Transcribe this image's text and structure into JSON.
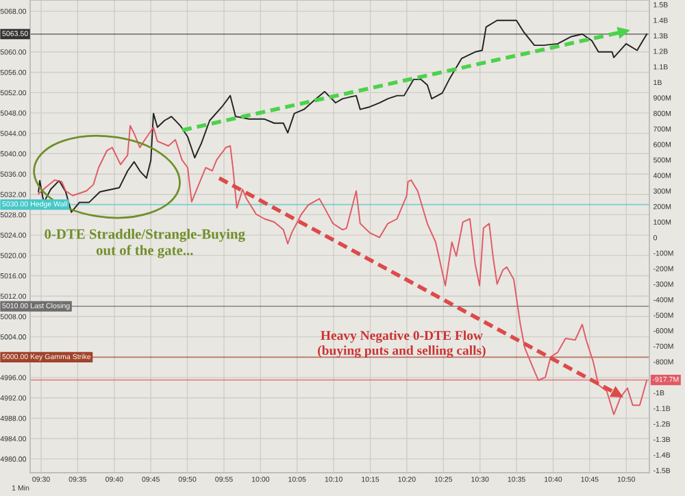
{
  "chart_data": {
    "type": "line",
    "xlim": [
      9.475,
      10.886
    ],
    "xticks": [
      {
        "value": 9.5,
        "label": "09:30"
      },
      {
        "value": 9.5833,
        "label": "09:35"
      },
      {
        "value": 9.6667,
        "label": "09:40"
      },
      {
        "value": 9.75,
        "label": "09:45"
      },
      {
        "value": 9.8333,
        "label": "09:50"
      },
      {
        "value": 9.9167,
        "label": "09:55"
      },
      {
        "value": 10,
        "label": "10:00"
      },
      {
        "value": 10.0833,
        "label": "10:05"
      },
      {
        "value": 10.1667,
        "label": "10:10"
      },
      {
        "value": 10.25,
        "label": "10:15"
      },
      {
        "value": 10.3333,
        "label": "10:20"
      },
      {
        "value": 10.4167,
        "label": "10:25"
      },
      {
        "value": 10.5,
        "label": "10:30"
      },
      {
        "value": 10.5833,
        "label": "10:35"
      },
      {
        "value": 10.6667,
        "label": "10:40"
      },
      {
        "value": 10.75,
        "label": "10:45"
      },
      {
        "value": 10.8333,
        "label": "10:50"
      }
    ],
    "ylim": [
      4977.3,
      5070.2
    ],
    "yticks": [
      {
        "value": 4980,
        "label": "4980.00"
      },
      {
        "value": 4984,
        "label": "4984.00"
      },
      {
        "value": 4988,
        "label": "4988.00"
      },
      {
        "value": 4992,
        "label": "4992.00"
      },
      {
        "value": 4996,
        "label": "4996.00"
      },
      {
        "value": 5004,
        "label": "5004.00"
      },
      {
        "value": 5008,
        "label": "5008.00"
      },
      {
        "value": 5012,
        "label": "5012.00"
      },
      {
        "value": 5016,
        "label": "5016.00"
      },
      {
        "value": 5020,
        "label": "5020.00"
      },
      {
        "value": 5024,
        "label": "5024.00"
      },
      {
        "value": 5028,
        "label": "5028.00"
      },
      {
        "value": 5032,
        "label": "5032.00"
      },
      {
        "value": 5036,
        "label": "5036.00"
      },
      {
        "value": 5040,
        "label": "5040.00"
      },
      {
        "value": 5044,
        "label": "5044.00"
      },
      {
        "value": 5048,
        "label": "5048.00"
      },
      {
        "value": 5052,
        "label": "5052.00"
      },
      {
        "value": 5056,
        "label": "5056.00"
      },
      {
        "value": 5060,
        "label": "5060.00"
      },
      {
        "value": 5068,
        "label": "5068.00"
      }
    ],
    "y2lim": [
      -1515000000.0,
      1530000000.0
    ],
    "y2ticks": [
      {
        "value": -1500000000.0,
        "label": "-1.5B"
      },
      {
        "value": -1400000000.0,
        "label": "-1.4B"
      },
      {
        "value": -1300000000.0,
        "label": "-1.3B"
      },
      {
        "value": -1200000000.0,
        "label": "-1.2B"
      },
      {
        "value": -1100000000.0,
        "label": "-1.1B"
      },
      {
        "value": -1000000000.0,
        "label": "-1B"
      },
      {
        "value": -800000000.0,
        "label": "-800M"
      },
      {
        "value": -700000000.0,
        "label": "-700M"
      },
      {
        "value": -600000000.0,
        "label": "-600M"
      },
      {
        "value": -500000000.0,
        "label": "-500M"
      },
      {
        "value": -400000000.0,
        "label": "-400M"
      },
      {
        "value": -300000000.0,
        "label": "-300M"
      },
      {
        "value": -200000000.0,
        "label": "-200M"
      },
      {
        "value": -100000000.0,
        "label": "-100M"
      },
      {
        "value": 0,
        "label": "0"
      },
      {
        "value": 100000000.0,
        "label": "100M"
      },
      {
        "value": 200000000.0,
        "label": "200M"
      },
      {
        "value": 300000000.0,
        "label": "300M"
      },
      {
        "value": 400000000.0,
        "label": "400M"
      },
      {
        "value": 500000000.0,
        "label": "500M"
      },
      {
        "value": 600000000.0,
        "label": "600M"
      },
      {
        "value": 700000000.0,
        "label": "700M"
      },
      {
        "value": 800000000.0,
        "label": "800M"
      },
      {
        "value": 900000000.0,
        "label": "900M"
      },
      {
        "value": 1000000000.0,
        "label": "1B"
      },
      {
        "value": 1100000000.0,
        "label": "1.1B"
      },
      {
        "value": 1200000000.0,
        "label": "1.2B"
      },
      {
        "value": 1300000000.0,
        "label": "1.3B"
      },
      {
        "value": 1400000000.0,
        "label": "1.4B"
      },
      {
        "value": 1500000000.0,
        "label": "1.5B"
      }
    ],
    "grid": true,
    "series": [
      {
        "color": "#e05a64",
        "axis": "y2",
        "x": [
          9.494,
          9.509,
          9.531,
          9.547,
          9.556,
          9.572,
          9.603,
          9.619,
          9.631,
          9.65,
          9.662,
          9.681,
          9.697,
          9.703,
          9.712,
          9.725,
          9.734,
          9.756,
          9.765,
          9.79,
          9.806,
          9.821,
          9.834,
          9.843,
          9.859,
          9.875,
          9.89,
          9.9,
          9.921,
          9.931,
          9.937,
          9.946,
          9.959,
          9.968,
          9.99,
          10.009,
          10.031,
          10.052,
          10.062,
          10.071,
          10.093,
          10.109,
          10.134,
          10.146,
          10.165,
          10.187,
          10.196,
          10.218,
          10.227,
          10.249,
          10.271,
          10.29,
          10.311,
          10.333,
          10.336,
          10.343,
          10.358,
          10.38,
          10.399,
          10.421,
          10.436,
          10.446,
          10.461,
          10.477,
          10.489,
          10.499,
          10.508,
          10.521,
          10.53,
          10.539,
          10.552,
          10.561,
          10.577,
          10.592,
          10.602,
          10.624,
          10.633,
          10.649,
          10.661,
          10.677,
          10.695,
          10.717,
          10.733,
          10.742,
          10.758,
          10.77,
          10.789,
          10.805,
          10.82,
          10.836,
          10.848,
          10.864,
          10.88
        ],
        "values": [
          280000000.0,
          320000000.0,
          370000000.0,
          360000000.0,
          300000000.0,
          270000000.0,
          300000000.0,
          340000000.0,
          450000000.0,
          560000000.0,
          580000000.0,
          470000000.0,
          530000000.0,
          720000000.0,
          670000000.0,
          580000000.0,
          620000000.0,
          710000000.0,
          620000000.0,
          590000000.0,
          630000000.0,
          500000000.0,
          450000000.0,
          230000000.0,
          340000000.0,
          450000000.0,
          430000000.0,
          500000000.0,
          580000000.0,
          590000000.0,
          450000000.0,
          190000000.0,
          310000000.0,
          250000000.0,
          150000000.0,
          120000000.0,
          100000000.0,
          50000000.0,
          -40000000.0,
          30000000.0,
          150000000.0,
          210000000.0,
          250000000.0,
          190000000.0,
          90000000.0,
          50000000.0,
          60000000.0,
          300000000.0,
          90000000.0,
          30000000.0,
          0,
          90000000.0,
          120000000.0,
          270000000.0,
          360000000.0,
          370000000.0,
          300000000.0,
          90000000.0,
          -30000000.0,
          -310000000.0,
          -30000000.0,
          -120000000.0,
          100000000.0,
          120000000.0,
          -170000000.0,
          -310000000.0,
          60000000.0,
          90000000.0,
          -130000000.0,
          -300000000.0,
          -210000000.0,
          -190000000.0,
          -270000000.0,
          -560000000.0,
          -710000000.0,
          -860000000.0,
          -920000000.0,
          -900000000.0,
          -770000000.0,
          -740000000.0,
          -650000000.0,
          -660000000.0,
          -560000000.0,
          -660000000.0,
          -800000000.0,
          -950000000.0,
          -990000000.0,
          -1140000000.0,
          -1030000000.0,
          -970000000.0,
          -1080000000.0,
          -1080000000.0,
          -920000000.0
        ]
      },
      {
        "color": "#222222",
        "axis": "y",
        "x": [
          9.494,
          9.497,
          9.506,
          9.522,
          9.541,
          9.556,
          9.569,
          9.587,
          9.609,
          9.634,
          9.678,
          9.697,
          9.712,
          9.725,
          9.74,
          9.75,
          9.756,
          9.765,
          9.781,
          9.797,
          9.818,
          9.834,
          9.85,
          9.865,
          9.884,
          9.912,
          9.931,
          9.943,
          9.974,
          10.009,
          10.031,
          10.052,
          10.062,
          10.077,
          10.099,
          10.124,
          10.146,
          10.171,
          10.187,
          10.218,
          10.227,
          10.249,
          10.271,
          10.29,
          10.311,
          10.327,
          10.349,
          10.365,
          10.38,
          10.39,
          10.414,
          10.43,
          10.458,
          10.489,
          10.505,
          10.514,
          10.539,
          10.583,
          10.599,
          10.624,
          10.645,
          10.677,
          10.708,
          10.733,
          10.755,
          10.77,
          10.801,
          10.805,
          10.833,
          10.858,
          10.88
        ],
        "values": [
          5032.5,
          5034.7,
          5030.4,
          5033,
          5034.7,
          5032.5,
          5028.5,
          5030.4,
          5030.4,
          5032.5,
          5033.3,
          5036.6,
          5038.4,
          5036.6,
          5035.2,
          5038.7,
          5047.9,
          5045.2,
          5046.5,
          5047.3,
          5045.4,
          5043.3,
          5039.2,
          5042,
          5046.5,
          5049.2,
          5051.4,
          5047.3,
          5046.8,
          5046.8,
          5046,
          5046,
          5044.1,
          5047.9,
          5048.7,
          5050.6,
          5052.2,
          5050,
          5050.8,
          5051.4,
          5048.7,
          5049.2,
          5050,
          5050.8,
          5051.4,
          5051.4,
          5054.6,
          5054.6,
          5053.5,
          5050.8,
          5051.9,
          5054.6,
          5058.7,
          5060,
          5060.3,
          5064.9,
          5066.2,
          5066.2,
          5064,
          5061.3,
          5061.3,
          5061.6,
          5063,
          5063.5,
          5062.2,
          5060,
          5060,
          5058.9,
          5061.6,
          5060.3,
          5063.5
        ]
      }
    ],
    "ref_lines": [
      {
        "axis": "y",
        "value": 5030,
        "label": "5030.00 Hedge Wall",
        "color": "#46c8c8"
      },
      {
        "axis": "y",
        "value": 5010,
        "label": "5010.00 Last Closing",
        "color": "#6e6e6e"
      },
      {
        "axis": "y",
        "value": 5000,
        "label": "5000.00 Key Gamma Strike",
        "color": "#a0432a"
      },
      {
        "axis": "y",
        "value": 5063.5,
        "label": "5063.50",
        "color": "#333333"
      },
      {
        "axis": "y2",
        "value": -917700000.0,
        "label": "-917.7M",
        "color": "#e05a64"
      }
    ],
    "annotations": [
      "0-DTE Straddle/Strangle-Buying\nout of the gate...",
      "Heavy Negative 0-DTE Flow\n(buying puts and selling calls)",
      "1 Min"
    ]
  }
}
